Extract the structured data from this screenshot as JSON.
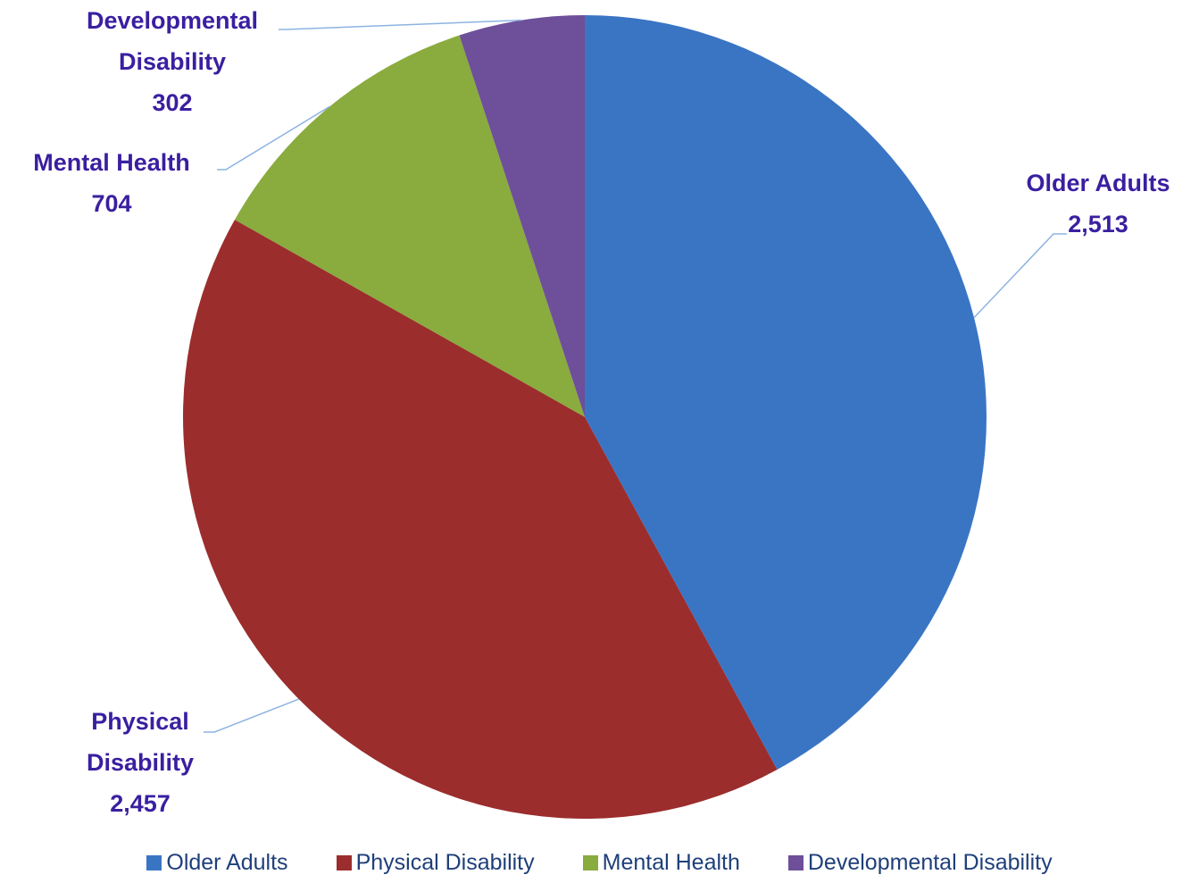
{
  "chart_data": {
    "type": "pie",
    "categories": [
      "Older Adults",
      "Physical Disability",
      "Mental Health",
      "Developmental Disability"
    ],
    "values": [
      2513,
      2457,
      704,
      302
    ],
    "value_labels": [
      "2,513",
      "2,457",
      "704",
      "302"
    ],
    "colors": [
      "#3a75c4",
      "#9b2d2d",
      "#8aab3e",
      "#6e4f9a"
    ],
    "legend": "bottom"
  }
}
